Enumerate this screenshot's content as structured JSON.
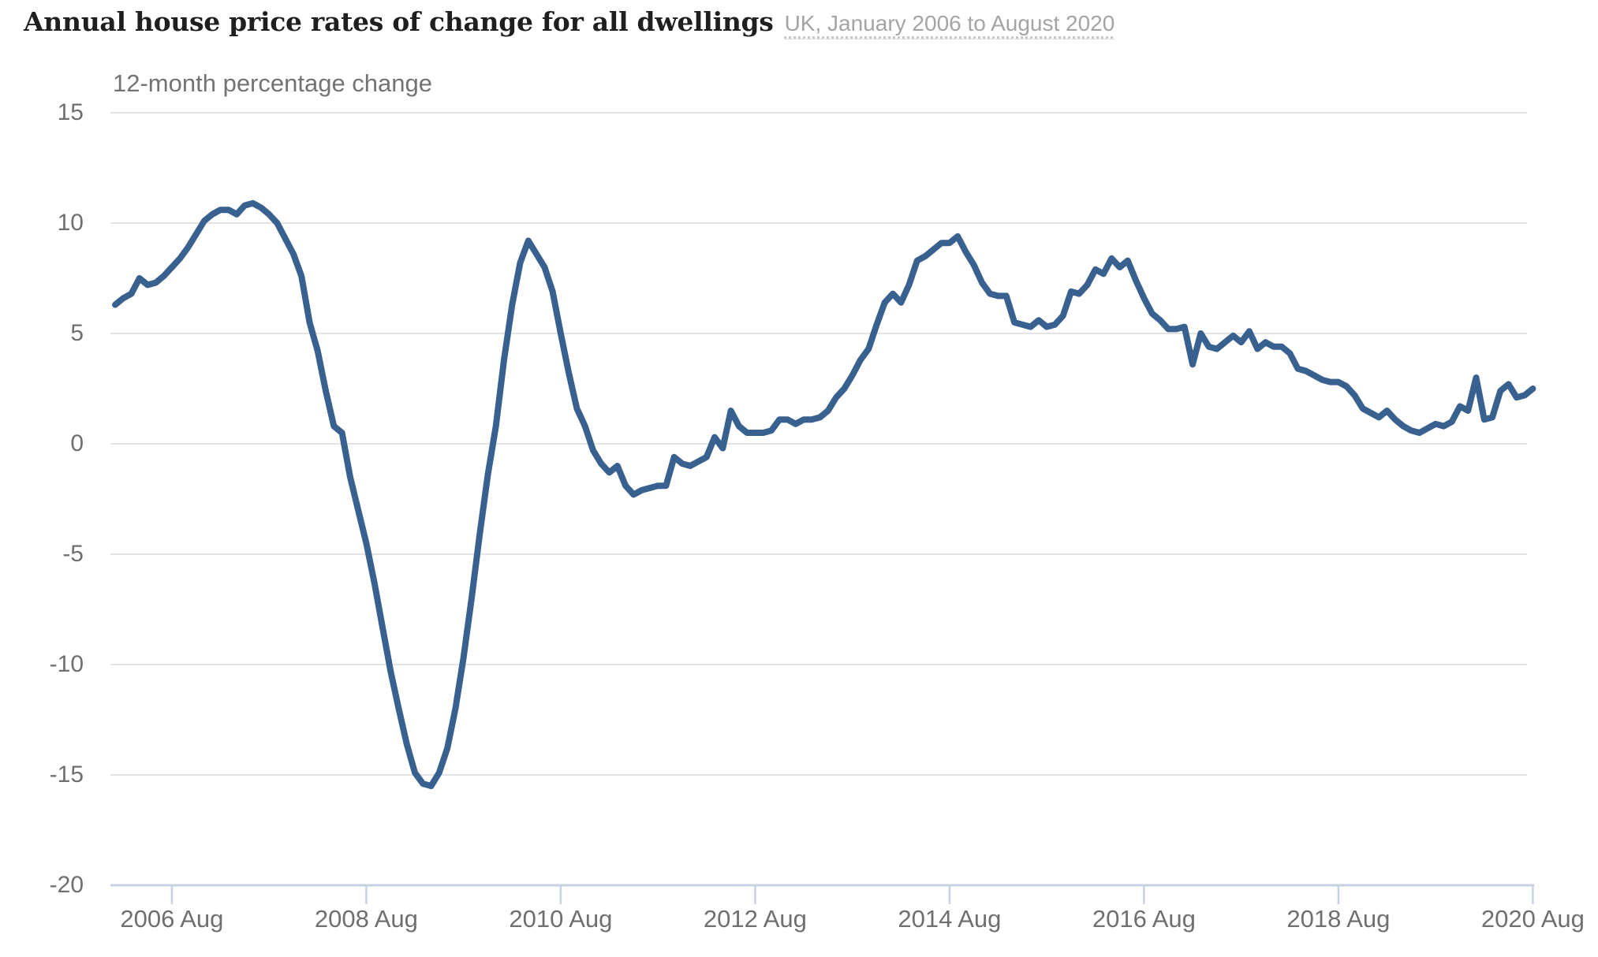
{
  "header": {
    "title": "Annual house price rates of change for all dwellings",
    "subtitle": "UK, January 2006 to August 2020"
  },
  "chart_data": {
    "type": "line",
    "title": "Annual house price rates of change for all dwellings",
    "subtitle": "UK, January 2006 to August 2020",
    "ylabel": "12-month percentage change",
    "xlabel": "",
    "x_unit": "month",
    "start": "2006-01",
    "end": "2020-08",
    "ylim": [
      -20,
      16.5
    ],
    "grid": "horizontal",
    "legend": "none",
    "y_ticks": [
      15,
      10,
      5,
      0,
      -5,
      -10,
      -15,
      -20
    ],
    "x_ticks": [
      {
        "label": "2006 Aug",
        "month": 7
      },
      {
        "label": "2008 Aug",
        "month": 31
      },
      {
        "label": "2010 Aug",
        "month": 55
      },
      {
        "label": "2012 Aug",
        "month": 79
      },
      {
        "label": "2014 Aug",
        "month": 103
      },
      {
        "label": "2016 Aug",
        "month": 127
      },
      {
        "label": "2018 Aug",
        "month": 151
      },
      {
        "label": "2020 Aug",
        "month": 175
      }
    ],
    "series": [
      {
        "name": "12-month percentage change, all dwellings, UK",
        "start": "2006-01",
        "values": [
          6.3,
          6.6,
          6.8,
          7.5,
          7.2,
          7.3,
          7.6,
          8.0,
          8.4,
          8.9,
          9.5,
          10.1,
          10.4,
          10.6,
          10.6,
          10.4,
          10.8,
          10.9,
          10.7,
          10.4,
          10.0,
          9.3,
          8.6,
          7.6,
          5.5,
          4.2,
          2.4,
          0.8,
          0.5,
          -1.5,
          -3.0,
          -4.5,
          -6.3,
          -8.3,
          -10.3,
          -12.0,
          -13.6,
          -14.9,
          -15.4,
          -15.5,
          -14.9,
          -13.8,
          -12.0,
          -9.7,
          -7.0,
          -4.1,
          -1.4,
          0.8,
          3.8,
          6.3,
          8.2,
          9.2,
          8.6,
          8.0,
          6.9,
          5.0,
          3.2,
          1.6,
          0.8,
          -0.3,
          -0.9,
          -1.3,
          -1.0,
          -1.9,
          -2.3,
          -2.1,
          -2.0,
          -1.9,
          -1.9,
          -0.6,
          -0.9,
          -1.0,
          -0.8,
          -0.6,
          0.3,
          -0.2,
          1.5,
          0.8,
          0.5,
          0.5,
          0.5,
          0.6,
          1.1,
          1.1,
          0.9,
          1.1,
          1.1,
          1.2,
          1.5,
          2.1,
          2.5,
          3.1,
          3.8,
          4.3,
          5.4,
          6.4,
          6.8,
          6.4,
          7.2,
          8.3,
          8.5,
          8.8,
          9.1,
          9.1,
          9.4,
          8.7,
          8.1,
          7.3,
          6.8,
          6.7,
          6.7,
          5.5,
          5.4,
          5.3,
          5.6,
          5.3,
          5.4,
          5.8,
          6.9,
          6.8,
          7.2,
          7.9,
          7.7,
          8.4,
          8.0,
          8.3,
          7.4,
          6.6,
          5.9,
          5.6,
          5.2,
          5.2,
          5.3,
          3.6,
          5.0,
          4.4,
          4.3,
          4.6,
          4.9,
          4.6,
          5.1,
          4.3,
          4.6,
          4.4,
          4.4,
          4.1,
          3.4,
          3.3,
          3.1,
          2.9,
          2.8,
          2.8,
          2.6,
          2.2,
          1.6,
          1.4,
          1.2,
          1.5,
          1.1,
          0.8,
          0.6,
          0.5,
          0.7,
          0.9,
          0.8,
          1.0,
          1.7,
          1.5,
          3.0,
          1.1,
          1.2,
          2.4,
          2.7,
          2.1,
          2.2,
          2.5
        ]
      }
    ],
    "colors": {
      "line": "#39618f",
      "grid": "#e3e3e3",
      "axis": "#c6d1e4",
      "tick_label": "#6f6f6f",
      "title": "#1f1f1f",
      "subtitle": "#a4a4a4"
    }
  }
}
